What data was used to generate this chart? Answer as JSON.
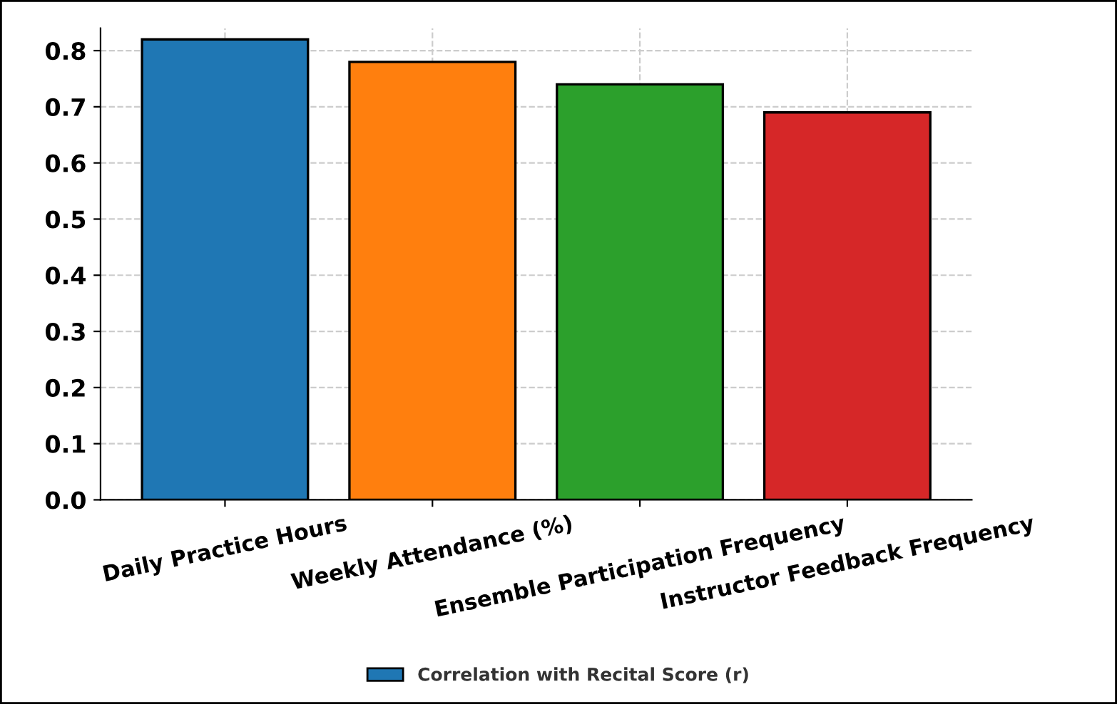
{
  "chart_data": {
    "type": "bar",
    "categories": [
      "Daily Practice Hours",
      "Weekly Attendance (%)",
      "Ensemble Participation Frequency",
      "Instructor Feedback Frequency"
    ],
    "series": [
      {
        "name": "Correlation with Recital Score (r)",
        "colors": [
          "#1f77b4",
          "#ff7f0e",
          "#2ca02c",
          "#d62728"
        ],
        "values": [
          0.82,
          0.78,
          0.74,
          0.69
        ]
      }
    ],
    "ylim": [
      0,
      0.84
    ],
    "yticks": [
      {
        "value": 0,
        "label": "0.0"
      },
      0.1,
      0.2,
      0.3,
      0.4,
      0.5,
      0.6,
      0.7,
      0.8
    ],
    "grid": true,
    "legend": "bottom"
  }
}
